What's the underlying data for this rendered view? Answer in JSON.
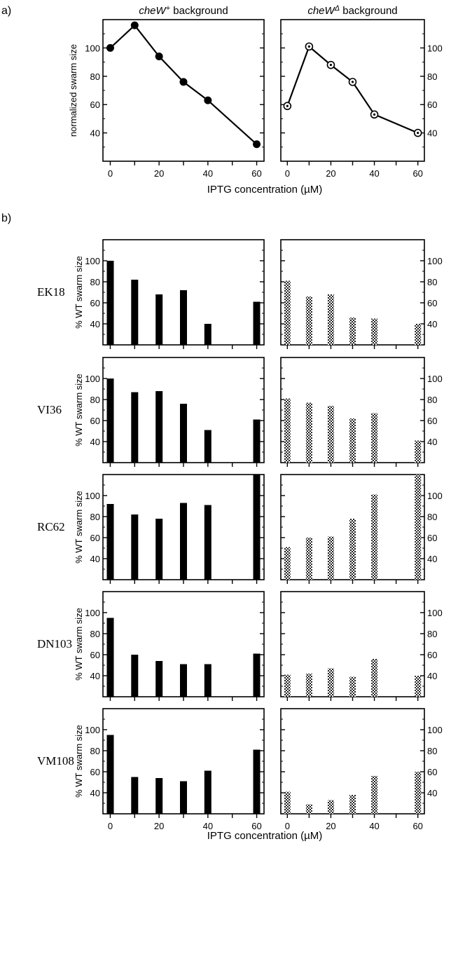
{
  "panel_labels": {
    "a": "a)",
    "b": "b)"
  },
  "x_axis_label": "IPTG concentration (µM)",
  "x_ticks": [
    "0",
    "20",
    "40",
    "60"
  ],
  "y_ticks": [
    "40",
    "60",
    "80",
    "100"
  ],
  "chart_data": [
    {
      "type": "line",
      "panel": "a",
      "column": "left",
      "title_italic": "cheW",
      "title_super": "+",
      "title_rest": " background",
      "ylabel": "normalized swarm size",
      "xlabel": "IPTG concentration (µM)",
      "marker": "filled-circle",
      "x": [
        0,
        10,
        20,
        30,
        40,
        60
      ],
      "y": [
        100,
        116,
        94,
        76,
        63,
        32
      ],
      "xlim": [
        -3,
        63
      ],
      "ylim": [
        20,
        120
      ]
    },
    {
      "type": "line",
      "panel": "a",
      "column": "right",
      "title_italic": "cheW",
      "title_super": "Δ",
      "title_rest": " background",
      "ylabel": "",
      "xlabel": "IPTG concentration (µM)",
      "marker": "open-circle-dot",
      "x": [
        0,
        10,
        20,
        30,
        40,
        60
      ],
      "y": [
        59,
        101,
        88,
        76,
        53,
        40
      ],
      "xlim": [
        -3,
        63
      ],
      "ylim": [
        20,
        120
      ]
    },
    {
      "type": "bar",
      "panel": "b",
      "strain": "EK18",
      "ylabel": "% WT swarm size",
      "xlabel": "IPTG concentration (µM)",
      "x": [
        0,
        10,
        20,
        30,
        40,
        60
      ],
      "xlim": [
        -3,
        63
      ],
      "ylim": [
        20,
        120
      ],
      "series": [
        {
          "name": "",
          "pattern": "solid",
          "values": [
            100,
            82,
            68,
            72,
            40,
            61
          ]
        },
        {
          "name": "",
          "pattern": "hatched",
          "values": [
            81,
            66,
            68,
            46,
            45,
            40
          ]
        }
      ]
    },
    {
      "type": "bar",
      "panel": "b",
      "strain": "VI36",
      "ylabel": "% WT swarm size",
      "xlabel": "IPTG concentration (µM)",
      "x": [
        0,
        10,
        20,
        30,
        40,
        60
      ],
      "xlim": [
        -3,
        63
      ],
      "ylim": [
        20,
        120
      ],
      "series": [
        {
          "name": "",
          "pattern": "solid",
          "values": [
            100,
            87,
            88,
            76,
            51,
            61
          ]
        },
        {
          "name": "",
          "pattern": "hatched",
          "values": [
            81,
            77,
            74,
            62,
            67,
            41
          ]
        }
      ]
    },
    {
      "type": "bar",
      "panel": "b",
      "strain": "RC62",
      "ylabel": "% WT swarm size",
      "xlabel": "IPTG concentration (µM)",
      "x": [
        0,
        10,
        20,
        30,
        40,
        60
      ],
      "xlim": [
        -3,
        63
      ],
      "ylim": [
        20,
        120
      ],
      "series": [
        {
          "name": "",
          "pattern": "solid",
          "values": [
            92,
            82,
            78,
            93,
            91,
            120
          ]
        },
        {
          "name": "",
          "pattern": "hatched",
          "values": [
            51,
            60,
            61,
            78,
            101,
            120
          ]
        }
      ]
    },
    {
      "type": "bar",
      "panel": "b",
      "strain": "DN103",
      "ylabel": "% WT swarm size",
      "xlabel": "IPTG concentration (µM)",
      "x": [
        0,
        10,
        20,
        30,
        40,
        60
      ],
      "xlim": [
        -3,
        63
      ],
      "ylim": [
        20,
        120
      ],
      "series": [
        {
          "name": "",
          "pattern": "solid",
          "values": [
            95,
            60,
            54,
            51,
            51,
            61
          ]
        },
        {
          "name": "",
          "pattern": "hatched",
          "values": [
            41,
            42,
            47,
            39,
            56,
            40
          ]
        }
      ]
    },
    {
      "type": "bar",
      "panel": "b",
      "strain": "VM108",
      "ylabel": "% WT swarm size",
      "xlabel": "IPTG concentration (µM)",
      "x": [
        0,
        10,
        20,
        30,
        40,
        60
      ],
      "xlim": [
        -3,
        63
      ],
      "ylim": [
        20,
        120
      ],
      "series": [
        {
          "name": "",
          "pattern": "solid",
          "values": [
            95,
            55,
            54,
            51,
            61,
            81
          ]
        },
        {
          "name": "",
          "pattern": "hatched",
          "values": [
            41,
            29,
            33,
            38,
            56,
            60
          ]
        }
      ]
    }
  ]
}
